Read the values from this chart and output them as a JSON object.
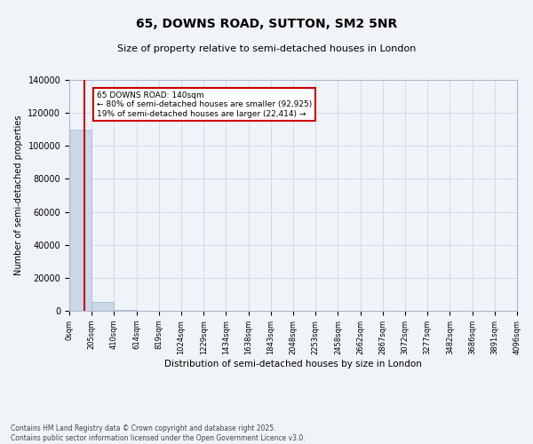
{
  "title": "65, DOWNS ROAD, SUTTON, SM2 5NR",
  "subtitle": "Size of property relative to semi-detached houses in London",
  "xlabel": "Distribution of semi-detached houses by size in London",
  "ylabel": "Number of semi-detached properties",
  "annotation_title": "65 DOWNS ROAD: 140sqm",
  "annotation_line1": "← 80% of semi-detached houses are smaller (92,925)",
  "annotation_line2": "19% of semi-detached houses are larger (22,414) →",
  "footer_line1": "Contains HM Land Registry data © Crown copyright and database right 2025.",
  "footer_line2": "Contains public sector information licensed under the Open Government Licence v3.0.",
  "bar_color": "#c8d8e8",
  "bar_edge_color": "#a0b8cc",
  "grid_color": "#d0dce8",
  "background_color": "#f0f4f8",
  "red_line_color": "#cc0000",
  "annotation_box_color": "#ffffff",
  "annotation_box_edge": "#cc0000",
  "bin_edges": [
    0,
    205,
    410,
    614,
    819,
    1024,
    1229,
    1434,
    1638,
    1843,
    2048,
    2253,
    2458,
    2662,
    2867,
    3072,
    3277,
    3482,
    3686,
    3891,
    4096
  ],
  "bin_labels": [
    "0sqm",
    "205sqm",
    "410sqm",
    "614sqm",
    "819sqm",
    "1024sqm",
    "1229sqm",
    "1434sqm",
    "1638sqm",
    "1843sqm",
    "2048sqm",
    "2253sqm",
    "2458sqm",
    "2662sqm",
    "2867sqm",
    "3072sqm",
    "3277sqm",
    "3482sqm",
    "3686sqm",
    "3891sqm",
    "4096sqm"
  ],
  "bar_heights": [
    110000,
    5200,
    300,
    50,
    20,
    10,
    5,
    3,
    2,
    1,
    1,
    1,
    1,
    1,
    0,
    0,
    0,
    0,
    0,
    0
  ],
  "property_size": 140,
  "ylim": [
    0,
    140000
  ],
  "yticks": [
    0,
    20000,
    40000,
    60000,
    80000,
    100000,
    120000,
    140000
  ]
}
